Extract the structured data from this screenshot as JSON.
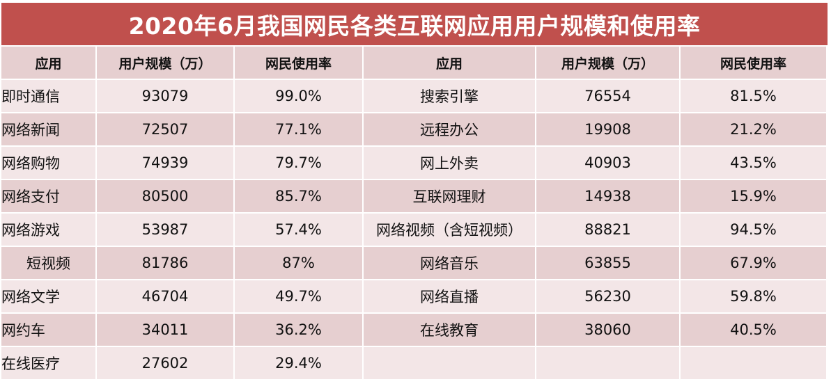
{
  "title": "2020年6月我国网民各类互联网应用用户规模和使用率",
  "headers": [
    "应用",
    "用户规模（万）",
    "网民使用率",
    "应用",
    "用户规模（万）",
    "网民使用率"
  ],
  "rows": [
    {
      "app_l": "即时通信",
      "users_l": "93079",
      "rate_l": "99.0%",
      "app_r": "搜索引擎",
      "users_r": "76554",
      "rate_r": "81.5%"
    },
    {
      "app_l": "网络新闻",
      "users_l": "72507",
      "rate_l": "77.1%",
      "app_r": "远程办公",
      "users_r": "19908",
      "rate_r": "21.2%"
    },
    {
      "app_l": "网络购物",
      "users_l": "74939",
      "rate_l": "79.7%",
      "app_r": "网上外卖",
      "users_r": "40903",
      "rate_r": "43.5%"
    },
    {
      "app_l": "网络支付",
      "users_l": "80500",
      "rate_l": "85.7%",
      "app_r": "互联网理财",
      "users_r": "14938",
      "rate_r": "15.9%"
    },
    {
      "app_l": "网络游戏",
      "users_l": "53987",
      "rate_l": "57.4%",
      "app_r": "网络视频（含短视频）",
      "users_r": "88821",
      "rate_r": "94.5%"
    },
    {
      "app_l": "短视频",
      "users_l": "81786",
      "rate_l": "87%",
      "app_r": "网络音乐",
      "users_r": "63855",
      "rate_r": "67.9%"
    },
    {
      "app_l": "网络文学",
      "users_l": "46704",
      "rate_l": "49.7%",
      "app_r": "网络直播",
      "users_r": "56230",
      "rate_r": "59.8%"
    },
    {
      "app_l": "网约车",
      "users_l": "34011",
      "rate_l": "36.2%",
      "app_r": "在线教育",
      "users_r": "38060",
      "rate_r": "40.5%"
    },
    {
      "app_l": "在线医疗",
      "users_l": "27602",
      "rate_l": "29.4%",
      "app_r": "",
      "users_r": "",
      "rate_r": ""
    }
  ],
  "colors": {
    "title_bar": "#c0504d",
    "header_row": "#e6cfd0",
    "row_light": "#f3e6e7",
    "row_dark": "#e6cfd0"
  }
}
